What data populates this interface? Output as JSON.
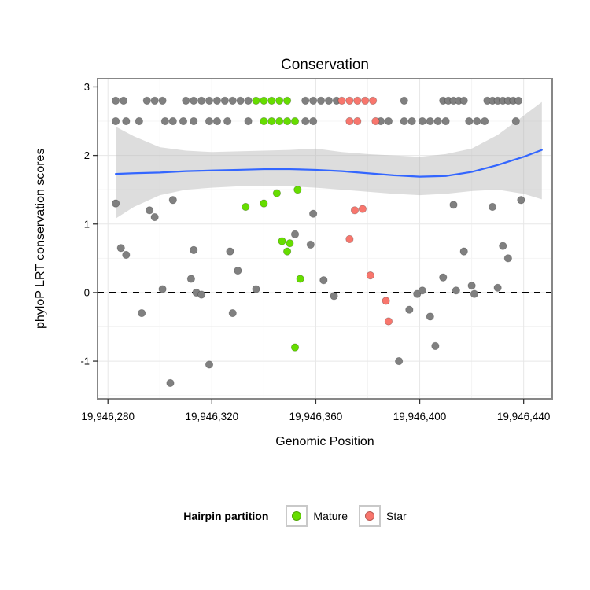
{
  "title": "Conservation",
  "axes": {
    "x": {
      "label": "Genomic Position",
      "ticks": [
        19946280,
        19946320,
        19946360,
        19946400,
        19946440
      ],
      "tick_labels": [
        "19,946,280",
        "19,946,320",
        "19,946,360",
        "19,946,400",
        "19,946,440"
      ]
    },
    "y": {
      "label": "phyloP LRT conservation scores",
      "ticks": [
        -1,
        0,
        1,
        2,
        3
      ],
      "tick_labels": [
        "-1",
        "0",
        "1",
        "2",
        "3"
      ]
    }
  },
  "legend": {
    "title": "Hairpin partition",
    "items": [
      {
        "label": "Mature",
        "color": "#66DD00"
      },
      {
        "label": "Star",
        "color": "#F8766D"
      }
    ]
  },
  "colors": {
    "other_points": "#808080",
    "mature_points": "#66DD00",
    "star_points": "#F8766D",
    "smooth_line": "#3366FF",
    "confidence_band": "rgba(180,180,180,0.45)",
    "reference_line": "#000000",
    "panel_border": "#878787"
  },
  "chart_data": {
    "type": "scatter",
    "title": "Conservation",
    "xlabel": "Genomic Position",
    "ylabel": "phyloP LRT conservation scores",
    "xlim": [
      19946276,
      19946451
    ],
    "ylim": [
      -1.55,
      3.12
    ],
    "grid": true,
    "legend_position": "bottom",
    "reference_line": {
      "y": 0,
      "style": "dashed",
      "color": "#000000"
    },
    "smooth": {
      "color": "#3366FF",
      "band_color": "rgba(180,180,180,0.45)",
      "x": [
        19946283,
        19946290,
        19946300,
        19946310,
        19946320,
        19946330,
        19946340,
        19946350,
        19946360,
        19946370,
        19946380,
        19946390,
        19946400,
        19946410,
        19946420,
        19946430,
        19946440,
        19946447
      ],
      "fit": [
        1.73,
        1.74,
        1.75,
        1.77,
        1.78,
        1.79,
        1.8,
        1.8,
        1.79,
        1.77,
        1.74,
        1.71,
        1.69,
        1.7,
        1.76,
        1.86,
        1.98,
        2.08
      ],
      "lower": [
        1.08,
        1.25,
        1.42,
        1.5,
        1.53,
        1.55,
        1.56,
        1.55,
        1.53,
        1.5,
        1.47,
        1.44,
        1.42,
        1.44,
        1.48,
        1.5,
        1.44,
        1.36
      ],
      "upper": [
        2.42,
        2.28,
        2.12,
        2.07,
        2.05,
        2.06,
        2.07,
        2.08,
        2.1,
        2.05,
        2.02,
        2.0,
        1.98,
        2.02,
        2.1,
        2.3,
        2.58,
        2.78
      ]
    },
    "series": [
      {
        "name": "Other",
        "color": "#808080",
        "points": [
          [
            19946283,
            2.8
          ],
          [
            19946286,
            2.8
          ],
          [
            19946295,
            2.8
          ],
          [
            19946298,
            2.8
          ],
          [
            19946301,
            2.8
          ],
          [
            19946310,
            2.8
          ],
          [
            19946313,
            2.8
          ],
          [
            19946316,
            2.8
          ],
          [
            19946319,
            2.8
          ],
          [
            19946322,
            2.8
          ],
          [
            19946325,
            2.8
          ],
          [
            19946328,
            2.8
          ],
          [
            19946331,
            2.8
          ],
          [
            19946334,
            2.8
          ],
          [
            19946356,
            2.8
          ],
          [
            19946359,
            2.8
          ],
          [
            19946362,
            2.8
          ],
          [
            19946365,
            2.8
          ],
          [
            19946368,
            2.8
          ],
          [
            19946394,
            2.8
          ],
          [
            19946409,
            2.8
          ],
          [
            19946411,
            2.8
          ],
          [
            19946413,
            2.8
          ],
          [
            19946415,
            2.8
          ],
          [
            19946417,
            2.8
          ],
          [
            19946426,
            2.8
          ],
          [
            19946428,
            2.8
          ],
          [
            19946430,
            2.8
          ],
          [
            19946432,
            2.8
          ],
          [
            19946434,
            2.8
          ],
          [
            19946436,
            2.8
          ],
          [
            19946438,
            2.8
          ],
          [
            19946283,
            2.5
          ],
          [
            19946287,
            2.5
          ],
          [
            19946292,
            2.5
          ],
          [
            19946302,
            2.5
          ],
          [
            19946305,
            2.5
          ],
          [
            19946309,
            2.5
          ],
          [
            19946313,
            2.5
          ],
          [
            19946319,
            2.5
          ],
          [
            19946322,
            2.5
          ],
          [
            19946326,
            2.5
          ],
          [
            19946334,
            2.5
          ],
          [
            19946356,
            2.5
          ],
          [
            19946359,
            2.5
          ],
          [
            19946385,
            2.5
          ],
          [
            19946388,
            2.5
          ],
          [
            19946394,
            2.5
          ],
          [
            19946397,
            2.5
          ],
          [
            19946401,
            2.5
          ],
          [
            19946404,
            2.5
          ],
          [
            19946407,
            2.5
          ],
          [
            19946410,
            2.5
          ],
          [
            19946419,
            2.5
          ],
          [
            19946422,
            2.5
          ],
          [
            19946425,
            2.5
          ],
          [
            19946437,
            2.5
          ],
          [
            19946283,
            1.3
          ],
          [
            19946285,
            0.65
          ],
          [
            19946287,
            0.55
          ],
          [
            19946293,
            -0.3
          ],
          [
            19946296,
            1.2
          ],
          [
            19946298,
            1.1
          ],
          [
            19946301,
            0.05
          ],
          [
            19946304,
            -1.32
          ],
          [
            19946305,
            1.35
          ],
          [
            19946312,
            0.2
          ],
          [
            19946313,
            0.62
          ],
          [
            19946314,
            0.0
          ],
          [
            19946316,
            -0.03
          ],
          [
            19946319,
            -1.05
          ],
          [
            19946327,
            0.6
          ],
          [
            19946328,
            -0.3
          ],
          [
            19946330,
            0.32
          ],
          [
            19946337,
            0.05
          ],
          [
            19946352,
            0.85
          ],
          [
            19946358,
            0.7
          ],
          [
            19946359,
            1.15
          ],
          [
            19946363,
            0.18
          ],
          [
            19946367,
            -0.05
          ],
          [
            19946392,
            -1.0
          ],
          [
            19946396,
            -0.25
          ],
          [
            19946399,
            -0.02
          ],
          [
            19946401,
            0.03
          ],
          [
            19946404,
            -0.35
          ],
          [
            19946406,
            -0.78
          ],
          [
            19946409,
            0.22
          ],
          [
            19946413,
            1.28
          ],
          [
            19946414,
            0.03
          ],
          [
            19946417,
            0.6
          ],
          [
            19946420,
            0.1
          ],
          [
            19946421,
            -0.02
          ],
          [
            19946428,
            1.25
          ],
          [
            19946430,
            0.07
          ],
          [
            19946432,
            0.68
          ],
          [
            19946434,
            0.5
          ],
          [
            19946439,
            1.35
          ]
        ]
      },
      {
        "name": "Mature",
        "color": "#66DD00",
        "points": [
          [
            19946337,
            2.8
          ],
          [
            19946340,
            2.8
          ],
          [
            19946343,
            2.8
          ],
          [
            19946346,
            2.8
          ],
          [
            19946349,
            2.8
          ],
          [
            19946340,
            2.5
          ],
          [
            19946343,
            2.5
          ],
          [
            19946346,
            2.5
          ],
          [
            19946349,
            2.5
          ],
          [
            19946352,
            2.5
          ],
          [
            19946333,
            1.25
          ],
          [
            19946340,
            1.3
          ],
          [
            19946345,
            1.45
          ],
          [
            19946353,
            1.5
          ],
          [
            19946347,
            0.75
          ],
          [
            19946350,
            0.72
          ],
          [
            19946349,
            0.6
          ],
          [
            19946354,
            0.2
          ],
          [
            19946352,
            -0.8
          ]
        ]
      },
      {
        "name": "Star",
        "color": "#F8766D",
        "points": [
          [
            19946370,
            2.8
          ],
          [
            19946373,
            2.8
          ],
          [
            19946376,
            2.8
          ],
          [
            19946379,
            2.8
          ],
          [
            19946382,
            2.8
          ],
          [
            19946373,
            2.5
          ],
          [
            19946376,
            2.5
          ],
          [
            19946383,
            2.5
          ],
          [
            19946373,
            0.78
          ],
          [
            19946375,
            1.2
          ],
          [
            19946378,
            1.22
          ],
          [
            19946381,
            0.25
          ],
          [
            19946387,
            -0.12
          ],
          [
            19946388,
            -0.42
          ]
        ]
      }
    ]
  }
}
